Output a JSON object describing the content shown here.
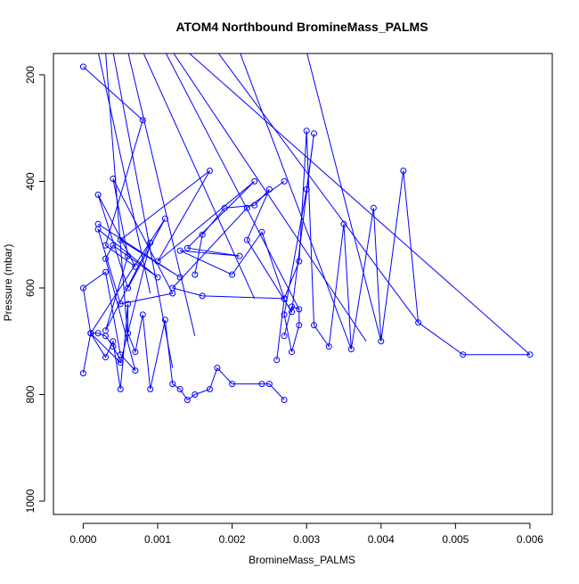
{
  "chart_data": {
    "type": "line",
    "title": "ATOM4 Northbound BromineMass_PALMS",
    "xlabel": "BromineMass_PALMS",
    "ylabel": "Pressure (mbar)",
    "xlim": [
      -0.0004,
      0.0063
    ],
    "ylim": [
      1025,
      160
    ],
    "y_reversed": true,
    "grid": false,
    "legend": "none",
    "marker": "open-circle",
    "color": "#0000ff",
    "x_ticks": [
      0.0,
      0.001,
      0.002,
      0.003,
      0.004,
      0.005,
      0.006
    ],
    "x_tick_labels": [
      "0.000",
      "0.001",
      "0.002",
      "0.003",
      "0.004",
      "0.005",
      "0.006"
    ],
    "y_ticks": [
      200,
      400,
      600,
      800,
      1000
    ],
    "y_tick_labels": [
      "200",
      "400",
      "600",
      "800",
      "1000"
    ],
    "series": [
      {
        "x": [
          0.0,
          0.0008,
          0.0003,
          0.0007,
          0.0002,
          0.0006,
          0.0011,
          0.0001,
          0.0005,
          0.0009,
          0.0003,
          0.0006,
          0.0004,
          0.0012,
          0.0005,
          0.0002,
          0.001,
          0.0004,
          0.0003,
          0.0007,
          0.0005,
          0.0003,
          0.0,
          0.0001,
          0.0002,
          0.0003,
          0.0004,
          0.0005
        ],
        "y": [
          185,
          285,
          520,
          560,
          425,
          600,
          470,
          685,
          740,
          515,
          680,
          540,
          395,
          610,
          630,
          490,
          580,
          520,
          545,
          755,
          725,
          570,
          600,
          685,
          685,
          690,
          710,
          735
        ]
      },
      {
        "x": [
          0.0002,
          0.0013,
          0.0005,
          0.0017,
          0.001,
          0.0023,
          0.0014,
          0.0021,
          0.0013,
          0.002,
          0.0024,
          0.0027,
          0.0016,
          0.0012,
          0.0022,
          0.0027
        ],
        "y": [
          480,
          580,
          510,
          380,
          550,
          400,
          525,
          540,
          530,
          575,
          495,
          620,
          615,
          600,
          450,
          400
        ]
      },
      {
        "x": [
          0.0,
          0.0001,
          0.0003,
          0.0004,
          0.0005,
          0.0006,
          0.0006,
          0.0007,
          0.0008,
          0.0009,
          0.0011,
          0.0012,
          0.0013,
          0.0014,
          0.0015,
          0.0017,
          0.0018,
          0.002,
          0.0024,
          0.0025,
          0.0027
        ],
        "y": [
          760,
          685,
          730,
          700,
          790,
          630,
          685,
          720,
          650,
          790,
          660,
          780,
          790,
          810,
          800,
          790,
          750,
          780,
          780,
          780,
          810
        ]
      },
      {
        "x": [
          0.0026,
          0.0027,
          0.0029,
          0.003,
          0.0031,
          0.0033,
          0.0035,
          0.0036,
          0.0039,
          0.004,
          0.0043,
          0.0045,
          0.0051,
          0.006
        ],
        "y": [
          735,
          620,
          550,
          305,
          670,
          710,
          480,
          715,
          450,
          700,
          380,
          665,
          725,
          725
        ]
      },
      {
        "x": [
          0.0027,
          0.0028,
          0.0029,
          0.0029,
          0.0028,
          0.0027,
          0.003,
          0.0031,
          0.0028,
          0.0022,
          0.0025,
          0.0023,
          0.0019,
          0.0016,
          0.0015
        ],
        "y": [
          690,
          635,
          640,
          670,
          720,
          650,
          415,
          310,
          645,
          510,
          415,
          445,
          450,
          500,
          575
        ]
      }
    ],
    "top_stubs": [
      {
        "x": 0.0002,
        "y_from": 160,
        "x_to": 0.0009,
        "y_to": 610
      },
      {
        "x": 0.0003,
        "y_from": 160,
        "x_to": 0.0006,
        "y_to": 700
      },
      {
        "x": 0.0004,
        "y_from": 160,
        "x_to": 0.0012,
        "y_to": 750
      },
      {
        "x": 0.0006,
        "y_from": 160,
        "x_to": 0.0015,
        "y_to": 690
      },
      {
        "x": 0.0008,
        "y_from": 160,
        "x_to": 0.0023,
        "y_to": 620
      },
      {
        "x": 0.0011,
        "y_from": 160,
        "x_to": 0.0029,
        "y_to": 640
      },
      {
        "x": 0.0012,
        "y_from": 160,
        "x_to": 0.0038,
        "y_to": 700
      },
      {
        "x": 0.0014,
        "y_from": 160,
        "x_to": 0.006,
        "y_to": 725
      },
      {
        "x": 0.0018,
        "y_from": 160,
        "x_to": 0.0045,
        "y_to": 665
      },
      {
        "x": 0.0021,
        "y_from": 160,
        "x_to": 0.0036,
        "y_to": 715
      },
      {
        "x": 0.003,
        "y_from": 160,
        "x_to": 0.004,
        "y_to": 700
      }
    ]
  }
}
